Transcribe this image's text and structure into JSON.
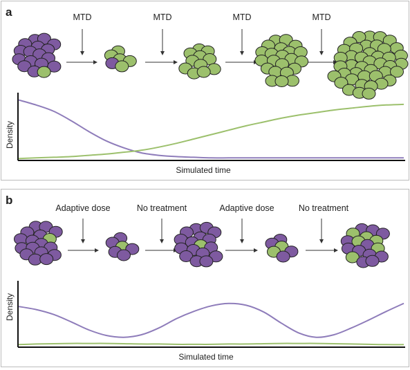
{
  "panels": [
    {
      "label": "a",
      "steps": [
        "MTD",
        "MTD",
        "MTD",
        "MTD"
      ],
      "plot": {
        "ylabel": "Density",
        "xlabel": "Simulated time",
        "series": [
          {
            "color": "#8e7cba",
            "values": [
              0.95,
              0.87,
              0.77,
              0.62,
              0.45,
              0.3,
              0.19,
              0.11,
              0.07,
              0.05,
              0.04,
              0.03,
              0.03,
              0.03,
              0.03,
              0.03,
              0.03,
              0.03,
              0.03,
              0.03,
              0.03,
              0.03,
              0.03
            ]
          },
          {
            "color": "#9cc06c",
            "values": [
              0.02,
              0.03,
              0.04,
              0.05,
              0.07,
              0.09,
              0.12,
              0.15,
              0.2,
              0.26,
              0.33,
              0.4,
              0.47,
              0.54,
              0.6,
              0.66,
              0.71,
              0.75,
              0.79,
              0.82,
              0.85,
              0.87,
              0.88
            ]
          }
        ]
      }
    },
    {
      "label": "b",
      "steps": [
        "Adaptive dose",
        "No treatment",
        "Adaptive dose",
        "No treatment"
      ],
      "plot": {
        "ylabel": "Density",
        "xlabel": "Simulated time",
        "series": [
          {
            "color": "#8e7cba",
            "values": [
              0.65,
              0.6,
              0.52,
              0.4,
              0.27,
              0.18,
              0.15,
              0.19,
              0.3,
              0.45,
              0.57,
              0.66,
              0.7,
              0.67,
              0.56,
              0.38,
              0.22,
              0.15,
              0.19,
              0.3,
              0.43,
              0.57,
              0.7
            ]
          },
          {
            "color": "#9cc06c",
            "values": [
              0.03,
              0.04,
              0.045,
              0.05,
              0.05,
              0.05,
              0.045,
              0.04,
              0.04,
              0.035,
              0.035,
              0.035,
              0.04,
              0.04,
              0.045,
              0.05,
              0.05,
              0.05,
              0.045,
              0.04,
              0.035,
              0.03,
              0.03
            ]
          }
        ]
      }
    }
  ],
  "colors": {
    "resistant": "#9cc06c",
    "sensitive": "#7e5aa0",
    "outline": "#222222"
  }
}
